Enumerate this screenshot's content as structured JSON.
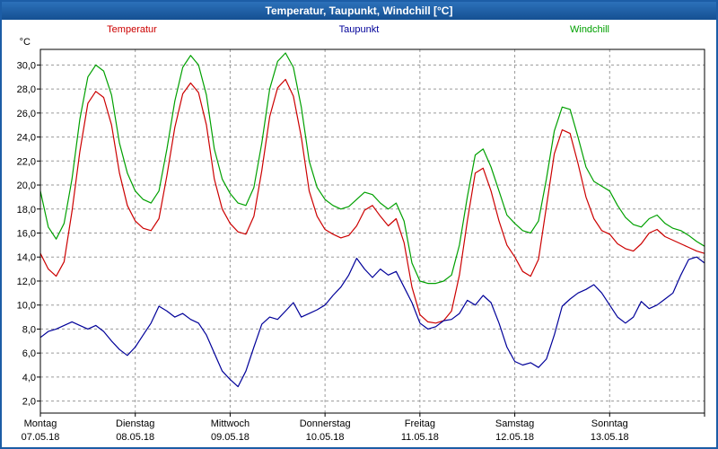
{
  "window": {
    "title": "Temperatur, Taupunkt, Windchill [°C]"
  },
  "colors": {
    "titlebar": "#1c5da6",
    "border": "#1c5da6",
    "grid": "#9a9a9a",
    "frame": "#000000",
    "plot_background": "#ffffff",
    "temperatur": "#cc0000",
    "taupunkt": "#000099",
    "windchill": "#00a000"
  },
  "chart_data": {
    "type": "line",
    "title": "Temperatur, Taupunkt, Windchill [°C]",
    "ylabel": "°C",
    "ylim": [
      1,
      31.3
    ],
    "yticks": [
      2,
      4,
      6,
      8,
      10,
      12,
      14,
      16,
      18,
      20,
      22,
      24,
      26,
      28,
      30
    ],
    "ytick_labels": [
      "2,0",
      "4,0",
      "6,0",
      "8,0",
      "10,0",
      "12,0",
      "14,0",
      "16,0",
      "18,0",
      "20,0",
      "22,0",
      "24,0",
      "26,0",
      "28,0",
      "30,0"
    ],
    "grid": "dashed",
    "legend_position": "top",
    "x_step_hours": 2,
    "x_total_hours": 168,
    "days": [
      {
        "name": "Montag",
        "date": "07.05.18"
      },
      {
        "name": "Dienstag",
        "date": "08.05.18"
      },
      {
        "name": "Mittwoch",
        "date": "09.05.18"
      },
      {
        "name": "Donnerstag",
        "date": "10.05.18"
      },
      {
        "name": "Freitag",
        "date": "11.05.18"
      },
      {
        "name": "Samstag",
        "date": "12.05.18"
      },
      {
        "name": "Sonntag",
        "date": "13.05.18"
      }
    ],
    "series": [
      {
        "name": "Temperatur",
        "color": "#cc0000",
        "values": [
          14.3,
          13.0,
          12.4,
          13.6,
          17.8,
          22.8,
          26.8,
          27.8,
          27.3,
          25.0,
          21.0,
          18.3,
          17.0,
          16.4,
          16.2,
          17.2,
          20.8,
          24.8,
          27.6,
          28.5,
          27.7,
          25.0,
          20.5,
          18.0,
          16.8,
          16.1,
          15.9,
          17.4,
          21.2,
          25.7,
          28.1,
          28.8,
          27.4,
          24.0,
          19.5,
          17.4,
          16.3,
          15.9,
          15.6,
          15.8,
          16.6,
          17.9,
          18.3,
          17.4,
          16.6,
          17.2,
          15.2,
          11.5,
          9.2,
          8.6,
          8.5,
          8.7,
          9.5,
          12.5,
          17.0,
          21.0,
          21.4,
          19.5,
          17.0,
          15.0,
          14.0,
          12.8,
          12.4,
          13.8,
          18.2,
          22.6,
          24.6,
          24.3,
          21.8,
          19.0,
          17.2,
          16.2,
          15.9,
          15.1,
          14.7,
          14.5,
          15.1,
          16.0,
          16.3,
          15.7,
          15.4,
          15.1,
          14.8,
          14.5,
          14.3
        ]
      },
      {
        "name": "Taupunkt",
        "color": "#000099",
        "values": [
          7.3,
          7.8,
          8.0,
          8.3,
          8.6,
          8.3,
          8.0,
          8.3,
          7.8,
          7.0,
          6.3,
          5.8,
          6.5,
          7.5,
          8.5,
          9.9,
          9.5,
          9.0,
          9.3,
          8.8,
          8.5,
          7.5,
          6.0,
          4.5,
          3.8,
          3.2,
          4.5,
          6.5,
          8.4,
          9.0,
          8.8,
          9.5,
          10.2,
          9.0,
          9.3,
          9.6,
          10.0,
          10.8,
          11.5,
          12.5,
          13.9,
          13.0,
          12.3,
          13.0,
          12.5,
          12.8,
          11.5,
          10.2,
          8.5,
          8.0,
          8.2,
          8.7,
          8.8,
          9.3,
          10.4,
          10.0,
          10.8,
          10.2,
          8.5,
          6.5,
          5.3,
          5.0,
          5.2,
          4.8,
          5.5,
          7.5,
          9.9,
          10.5,
          11.0,
          11.3,
          11.7,
          11.0,
          10.0,
          9.0,
          8.5,
          9.0,
          10.3,
          9.7,
          10.0,
          10.5,
          11.0,
          12.5,
          13.8,
          14.0,
          13.5
        ]
      },
      {
        "name": "Windchill",
        "color": "#00a000",
        "values": [
          19.5,
          16.5,
          15.5,
          16.8,
          20.5,
          25.5,
          29.0,
          30.0,
          29.5,
          27.5,
          23.5,
          21.0,
          19.5,
          18.8,
          18.5,
          19.5,
          23.0,
          27.0,
          29.8,
          30.8,
          30.0,
          27.5,
          23.0,
          20.5,
          19.3,
          18.5,
          18.3,
          19.8,
          23.5,
          28.0,
          30.3,
          31.0,
          29.8,
          26.5,
          22.0,
          19.8,
          18.8,
          18.3,
          18.0,
          18.2,
          18.8,
          19.4,
          19.2,
          18.5,
          18.0,
          18.5,
          17.0,
          13.5,
          12.0,
          11.8,
          11.8,
          12.0,
          12.5,
          15.0,
          19.0,
          22.5,
          23.0,
          21.5,
          19.5,
          17.5,
          16.8,
          16.2,
          16.0,
          17.0,
          20.5,
          24.5,
          26.5,
          26.3,
          24.0,
          21.5,
          20.3,
          19.9,
          19.5,
          18.3,
          17.3,
          16.7,
          16.5,
          17.2,
          17.5,
          16.8,
          16.4,
          16.2,
          15.8,
          15.3,
          14.9
        ]
      }
    ]
  }
}
